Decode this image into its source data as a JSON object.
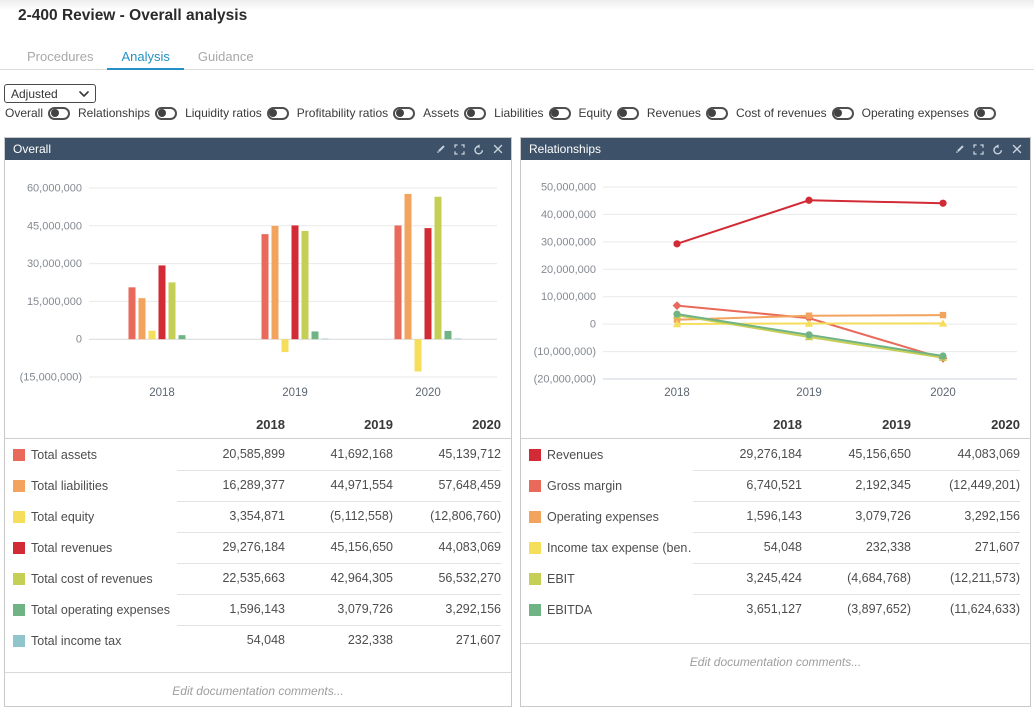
{
  "page": {
    "title": "2-400 Review - Overall analysis"
  },
  "tabs": [
    {
      "label": "Procedures",
      "active": false
    },
    {
      "label": "Analysis",
      "active": true
    },
    {
      "label": "Guidance",
      "active": false
    }
  ],
  "filter": {
    "selected": "Adjusted"
  },
  "toggles": [
    {
      "label": "Overall",
      "on": true
    },
    {
      "label": "Relationships",
      "on": true
    },
    {
      "label": "Liquidity ratios",
      "on": true
    },
    {
      "label": "Profitability ratios",
      "on": true
    },
    {
      "label": "Assets",
      "on": true
    },
    {
      "label": "Liabilities",
      "on": true
    },
    {
      "label": "Equity",
      "on": true
    },
    {
      "label": "Revenues",
      "on": true
    },
    {
      "label": "Cost of revenues",
      "on": true
    },
    {
      "label": "Operating expenses",
      "on": true
    }
  ],
  "colors": {
    "tab_accent": "#2590c4",
    "panel_header_bg": "#3d5168",
    "salmon": "#e96a5b",
    "orange": "#f2a45f",
    "yellow": "#f6de5d",
    "red": "#d22b35",
    "yellow_green": "#c6cf55",
    "green": "#70b384",
    "teal": "#90c5cb"
  },
  "panels": [
    {
      "title": "Overall",
      "header_icons": [
        "pencil",
        "fullscreen",
        "undo",
        "close"
      ],
      "table": {
        "columns": [
          "2018",
          "2019",
          "2020"
        ],
        "rows": [
          {
            "label": "Total assets",
            "color": "#e96a5b",
            "values": [
              "20,585,899",
              "41,692,168",
              "45,139,712"
            ]
          },
          {
            "label": "Total liabilities",
            "color": "#f2a45f",
            "values": [
              "16,289,377",
              "44,971,554",
              "57,648,459"
            ]
          },
          {
            "label": "Total equity",
            "color": "#f6de5d",
            "values": [
              "3,354,871",
              "(5,112,558)",
              "(12,806,760)"
            ]
          },
          {
            "label": "Total revenues",
            "color": "#d22b35",
            "values": [
              "29,276,184",
              "45,156,650",
              "44,083,069"
            ]
          },
          {
            "label": "Total cost of revenues",
            "color": "#c6cf55",
            "values": [
              "22,535,663",
              "42,964,305",
              "56,532,270"
            ]
          },
          {
            "label": "Total operating expenses",
            "color": "#70b384",
            "values": [
              "1,596,143",
              "3,079,726",
              "3,292,156"
            ]
          },
          {
            "label": "Total income tax",
            "color": "#90c5cb",
            "values": [
              "54,048",
              "232,338",
              "271,607"
            ]
          }
        ]
      },
      "comment_placeholder": "Edit documentation comments..."
    },
    {
      "title": "Relationships",
      "header_icons": [
        "pencil",
        "fullscreen",
        "undo",
        "close"
      ],
      "table": {
        "columns": [
          "2018",
          "2019",
          "2020"
        ],
        "rows": [
          {
            "label": "Revenues",
            "color": "#d22b35",
            "values": [
              "29,276,184",
              "45,156,650",
              "44,083,069"
            ]
          },
          {
            "label": "Gross margin",
            "color": "#e96a5b",
            "values": [
              "6,740,521",
              "2,192,345",
              "(12,449,201)"
            ]
          },
          {
            "label": "Operating expenses",
            "color": "#f2a45f",
            "values": [
              "1,596,143",
              "3,079,726",
              "3,292,156"
            ]
          },
          {
            "label": "Income tax expense (ben…",
            "color": "#f6de5d",
            "values": [
              "54,048",
              "232,338",
              "271,607"
            ]
          },
          {
            "label": "EBIT",
            "color": "#c6cf55",
            "values": [
              "3,245,424",
              "(4,684,768)",
              "(12,211,573)"
            ]
          },
          {
            "label": "EBITDA",
            "color": "#70b384",
            "values": [
              "3,651,127",
              "(3,897,652)",
              "(11,624,633)"
            ]
          }
        ]
      },
      "comment_placeholder": "Edit documentation comments..."
    }
  ],
  "chart_data": [
    {
      "type": "bar",
      "title": "Overall",
      "categories": [
        "2018",
        "2019",
        "2020"
      ],
      "series": [
        {
          "name": "Total assets",
          "color": "#e96a5b",
          "values": [
            20585899,
            41692168,
            45139712
          ]
        },
        {
          "name": "Total liabilities",
          "color": "#f2a45f",
          "values": [
            16289377,
            44971554,
            57648459
          ]
        },
        {
          "name": "Total equity",
          "color": "#f6de5d",
          "values": [
            3354871,
            -5112558,
            -12806760
          ]
        },
        {
          "name": "Total revenues",
          "color": "#d22b35",
          "values": [
            29276184,
            45156650,
            44083069
          ]
        },
        {
          "name": "Total cost of revenues",
          "color": "#c6cf55",
          "values": [
            22535663,
            42964305,
            56532270
          ]
        },
        {
          "name": "Total operating expenses",
          "color": "#70b384",
          "values": [
            1596143,
            3079726,
            3292156
          ]
        },
        {
          "name": "Total income tax",
          "color": "#90c5cb",
          "values": [
            54048,
            232338,
            271607
          ]
        }
      ],
      "ylim": [
        -15000000,
        60000000
      ],
      "y_ticks": [
        {
          "value": 60000000,
          "label": "60,000,000"
        },
        {
          "value": 45000000,
          "label": "45,000,000"
        },
        {
          "value": 30000000,
          "label": "30,000,000"
        },
        {
          "value": 15000000,
          "label": "15,000,000"
        },
        {
          "value": 0,
          "label": "0"
        },
        {
          "value": -15000000,
          "label": "(15,000,000)"
        }
      ],
      "grid": true,
      "legend_position": "table-below-left"
    },
    {
      "type": "line",
      "title": "Relationships",
      "categories": [
        "2018",
        "2019",
        "2020"
      ],
      "series": [
        {
          "name": "Revenues",
          "color": "#d22b35",
          "marker": "circle",
          "values": [
            29276184,
            45156650,
            44083069
          ]
        },
        {
          "name": "Gross margin",
          "color": "#e96a5b",
          "marker": "diamond",
          "values": [
            6740521,
            2192345,
            -12449201
          ]
        },
        {
          "name": "Operating expenses",
          "color": "#f2a45f",
          "marker": "square",
          "values": [
            1596143,
            3079726,
            3292156
          ]
        },
        {
          "name": "Income tax expense (ben…",
          "color": "#f6de5d",
          "marker": "triangle",
          "values": [
            54048,
            232338,
            271607
          ]
        },
        {
          "name": "EBIT",
          "color": "#c6cf55",
          "marker": "triangle",
          "values": [
            3245424,
            -4684768,
            -12211573
          ]
        },
        {
          "name": "EBITDA",
          "color": "#70b384",
          "marker": "circle",
          "values": [
            3651127,
            -3897652,
            -11624633
          ]
        }
      ],
      "ylim": [
        -20000000,
        50000000
      ],
      "y_ticks": [
        {
          "value": 50000000,
          "label": "50,000,000"
        },
        {
          "value": 40000000,
          "label": "40,000,000"
        },
        {
          "value": 30000000,
          "label": "30,000,000"
        },
        {
          "value": 20000000,
          "label": "20,000,000"
        },
        {
          "value": 10000000,
          "label": "10,000,000"
        },
        {
          "value": 0,
          "label": "0"
        },
        {
          "value": -10000000,
          "label": "(10,000,000)"
        },
        {
          "value": -20000000,
          "label": "(20,000,000)"
        }
      ],
      "grid": true,
      "legend_position": "table-below-left"
    }
  ]
}
